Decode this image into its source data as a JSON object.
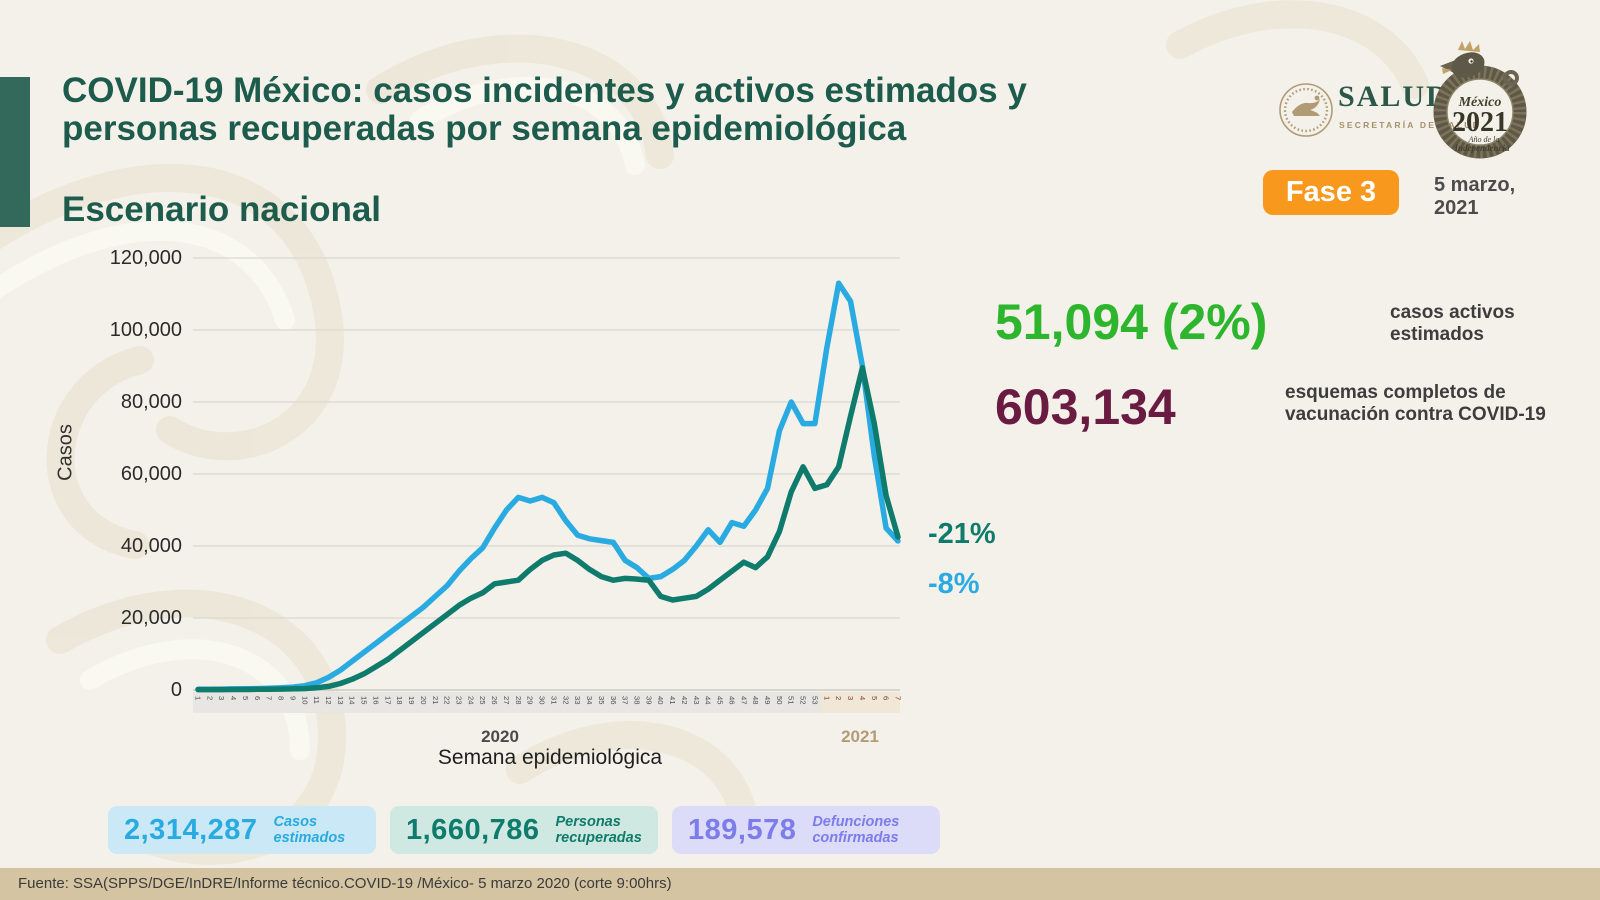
{
  "page": {
    "background": "#f4f1ea"
  },
  "header": {
    "title_line1": "COVID-19 México: casos incidentes y activos estimados y",
    "title_line2": "personas recuperadas por semana epidemiológica",
    "subtitle": "Escenario nacional",
    "title_color": "#1d5b4d"
  },
  "logos": {
    "salud": {
      "name": "SALUD",
      "sub": "SECRETARÍA DE SALUD"
    },
    "mexico2021": {
      "country": "México",
      "year": "2021",
      "sub_line1": "Año de la",
      "sub_line2": "Independencia"
    }
  },
  "phase_badge": {
    "label": "Fase 3",
    "color": "#f8981d"
  },
  "date_label": {
    "line1": "5 marzo,",
    "line2": "2021"
  },
  "chart_data": {
    "type": "line",
    "xlabel": "Semana epidemiológica",
    "ylabel": "Casos",
    "ylim": [
      0,
      120000
    ],
    "grid": true,
    "yticks": [
      "120,000",
      "100,000",
      "80,000",
      "60,000",
      "40,000",
      "20,000",
      "0"
    ],
    "x_groups": [
      {
        "year": "2020",
        "year_color": "#4a4a4a",
        "label_color": "#4f4f4f",
        "band_color": "#e7e6e2",
        "weeks": [
          1,
          2,
          3,
          4,
          5,
          6,
          7,
          8,
          9,
          10,
          11,
          12,
          13,
          14,
          15,
          16,
          17,
          18,
          19,
          20,
          21,
          22,
          23,
          24,
          25,
          26,
          27,
          28,
          29,
          30,
          31,
          32,
          33,
          34,
          35,
          36,
          37,
          38,
          39,
          40,
          41,
          42,
          43,
          44,
          45,
          46,
          47,
          48,
          49,
          50,
          51,
          52,
          53
        ]
      },
      {
        "year": "2021",
        "year_color": "#b49a76",
        "label_color": "#7e4033",
        "band_color": "#f0e7d7",
        "weeks": [
          1,
          2,
          3,
          4,
          5,
          6,
          7
        ]
      }
    ],
    "series": [
      {
        "name": "Casos incidentes estimados",
        "color": "#29abe2",
        "values": [
          200,
          200,
          250,
          300,
          350,
          400,
          500,
          600,
          800,
          1200,
          2000,
          3500,
          5500,
          8000,
          10500,
          13000,
          15500,
          18000,
          20500,
          23000,
          26000,
          29000,
          33000,
          36500,
          39500,
          45000,
          50000,
          53500,
          52500,
          53500,
          52000,
          47000,
          43000,
          42000,
          41500,
          41000,
          36000,
          34000,
          31000,
          31500,
          33500,
          36000,
          40000,
          44500,
          41000,
          46500,
          45500,
          50000,
          56000,
          72000,
          80000,
          74000,
          74000,
          95000,
          113000,
          108000,
          90000,
          65000,
          45000,
          41400
        ]
      },
      {
        "name": "Personas recuperadas",
        "color": "#0e7b6d",
        "values": [
          100,
          100,
          100,
          150,
          150,
          200,
          200,
          250,
          300,
          400,
          600,
          1000,
          1800,
          3000,
          4500,
          6500,
          8500,
          11000,
          13500,
          16000,
          18500,
          21000,
          23500,
          25500,
          27000,
          29500,
          30000,
          30500,
          33500,
          36000,
          37500,
          38000,
          36000,
          33500,
          31500,
          30500,
          31000,
          30800,
          30500,
          26000,
          25000,
          25500,
          26000,
          28000,
          30500,
          33000,
          35500,
          34000,
          37000,
          44000,
          55000,
          62000,
          56000,
          57000,
          62000,
          76000,
          89500,
          74000,
          54000,
          42500
        ]
      }
    ],
    "annotations": [
      {
        "text": "-21%",
        "color": "#0e7b6d"
      },
      {
        "text": "-8%",
        "color": "#29abe2"
      }
    ]
  },
  "right_stats": [
    {
      "value": "51,094 (2%)",
      "color": "#2db52d",
      "label_line1": "casos activos",
      "label_line2": "estimados"
    },
    {
      "value": "603,134",
      "color": "#6a1b41",
      "label_line1": "esquemas completos de",
      "label_line2": "vacunación contra COVID-19"
    }
  ],
  "bottom_stats": [
    {
      "value": "2,314,287",
      "label_line1": "Casos",
      "label_line2": "estimados",
      "color": "#29abe2",
      "bg": "#cbe8f6"
    },
    {
      "value": "1,660,786",
      "label_line1": "Personas",
      "label_line2": "recuperadas",
      "color": "#0e7b6d",
      "bg": "#cfe8e1"
    },
    {
      "value": "189,578",
      "label_line1": "Defunciones",
      "label_line2": "confirmadas",
      "color": "#7c7cea",
      "bg": "#dcdcf8"
    }
  ],
  "footer": {
    "text": "Fuente: SSA(SPPS/DGE/InDRE/Informe técnico.COVID-19 /México- 5 marzo 2020 (corte 9:00hrs)",
    "bg": "#d5c4a1"
  }
}
